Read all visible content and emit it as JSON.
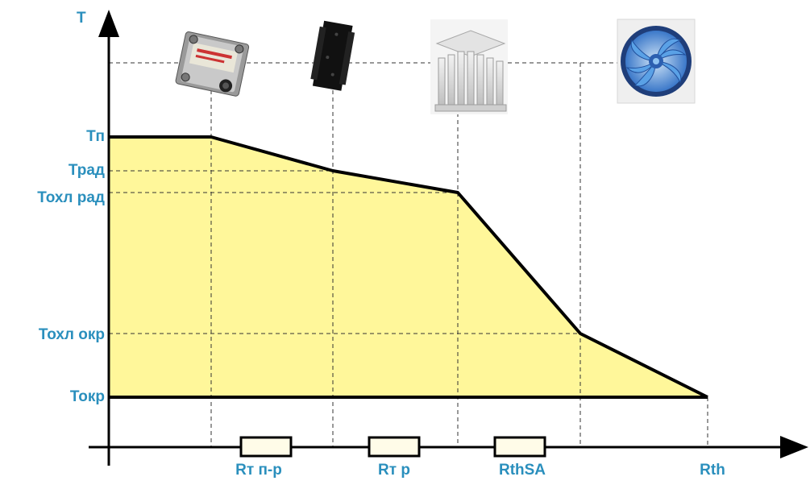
{
  "colors": {
    "label": "#2a8fbd",
    "area_fill": "#fff79a",
    "line": "#000000",
    "resistor_fill": "#fffce8"
  },
  "axes": {
    "y_label": "T",
    "y_ticks": [
      {
        "key": "tp",
        "label": "Тп"
      },
      {
        "key": "trad",
        "label": "Трад"
      },
      {
        "key": "tohl_rad",
        "label": "Тохл рад"
      },
      {
        "key": "tohl_okr",
        "label": "Тохл окр"
      },
      {
        "key": "tokr",
        "label": "Токр"
      }
    ]
  },
  "resistors": [
    {
      "key": "rt_pr",
      "label": "Rт п-р"
    },
    {
      "key": "rt_r",
      "label": "Rт р"
    },
    {
      "key": "rthsa",
      "label": "RthSA"
    },
    {
      "key": "rth",
      "label": "Rth"
    }
  ],
  "components": [
    {
      "key": "ssr",
      "icon": "solid-state-relay-icon"
    },
    {
      "key": "thermal_pad",
      "icon": "thermal-pad-icon"
    },
    {
      "key": "heatsink",
      "icon": "heatsink-icon"
    },
    {
      "key": "fan",
      "icon": "cooling-fan-icon"
    }
  ]
}
